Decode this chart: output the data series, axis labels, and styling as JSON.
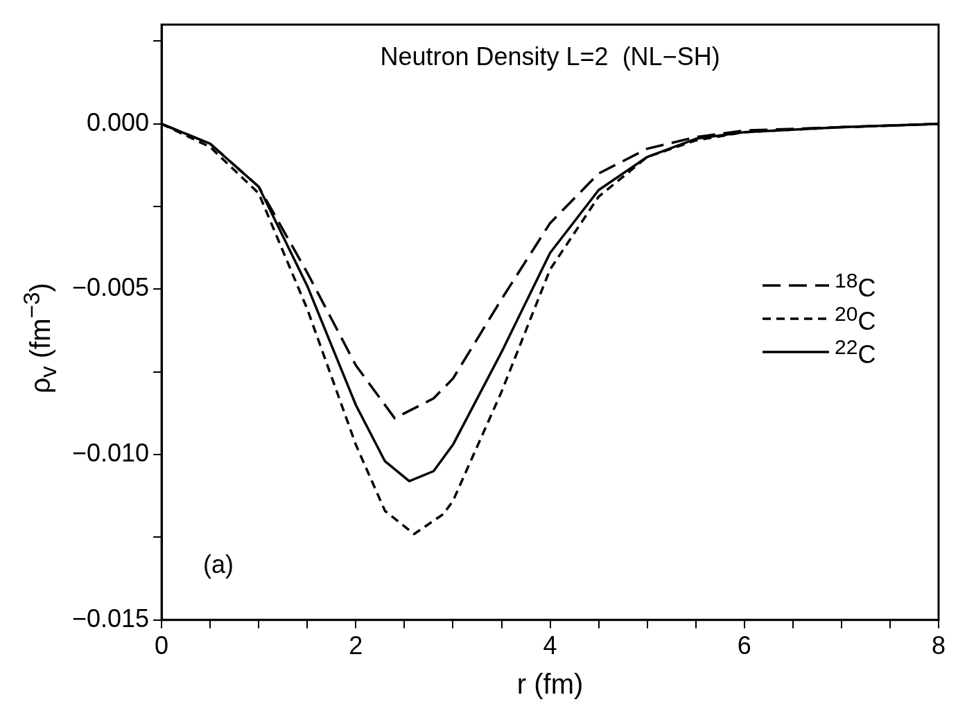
{
  "chart_data": {
    "type": "line",
    "title": "Neutron Density L=2  (NL−SH)",
    "xlabel": "r (fm)",
    "ylabel": "ρ$_{v}$ (fm$^{−3}$)",
    "annotations": [
      "(a)"
    ],
    "xlim": [
      0,
      8
    ],
    "xticks": [
      0,
      {
        "value": 0.5,
        "label": null
      },
      {
        "value": 1,
        "label": null
      },
      {
        "value": 1.5,
        "label": null
      },
      2,
      {
        "value": 2.5,
        "label": null
      },
      {
        "value": 3,
        "label": null
      },
      {
        "value": 3.5,
        "label": null
      },
      4,
      {
        "value": 4.5,
        "label": null
      },
      {
        "value": 5,
        "label": null
      },
      {
        "value": 5.5,
        "label": null
      },
      6,
      {
        "value": 6.5,
        "label": null
      },
      {
        "value": 7,
        "label": null
      },
      {
        "value": 7.5,
        "label": null
      },
      8
    ],
    "ylim": [
      -0.015,
      0.003
    ],
    "yticks": [
      {
        "value": -0.015,
        "label": "−0.015"
      },
      {
        "value": -0.0125,
        "label": null
      },
      {
        "value": -0.01,
        "label": "−0.010"
      },
      {
        "value": -0.0075,
        "label": null
      },
      {
        "value": -0.005,
        "label": "−0.005"
      },
      {
        "value": -0.0025,
        "label": null
      },
      {
        "value": 0,
        "label": "0.000"
      },
      {
        "value": 0.0025,
        "label": null
      }
    ],
    "grid": false,
    "legend": "right",
    "marker": "none",
    "series": [
      {
        "name": "$^{18}$C",
        "color": "#000000",
        "line_style": "dashed",
        "x": [
          0,
          0.5,
          1,
          1.5,
          2,
          2.4,
          2.8,
          3,
          3.5,
          4,
          4.5,
          5,
          5.5,
          6,
          7,
          8
        ],
        "values": [
          0,
          -0.0006,
          -0.0019,
          -0.0045,
          -0.0073,
          -0.0089,
          -0.0083,
          -0.0077,
          -0.0053,
          -0.003,
          -0.0015,
          -0.00075,
          -0.0004,
          -0.0002,
          -0.0001,
          0
        ]
      },
      {
        "name": "$^{20}$C",
        "color": "#000000",
        "line_style": "dotted",
        "x": [
          0,
          0.5,
          1,
          1.5,
          2,
          2.3,
          2.6,
          2.9,
          3,
          3.5,
          4,
          4.5,
          5,
          5.5,
          6,
          7,
          8
        ],
        "values": [
          0,
          -0.0007,
          -0.0021,
          -0.0056,
          -0.0097,
          -0.0117,
          -0.0124,
          -0.0118,
          -0.0114,
          -0.0081,
          -0.0044,
          -0.0022,
          -0.001,
          -0.0005,
          -0.00025,
          -0.0001,
          0
        ]
      },
      {
        "name": "$^{22}$C",
        "color": "#000000",
        "line_style": "solid",
        "x": [
          0,
          0.5,
          1,
          1.5,
          2,
          2.3,
          2.55,
          2.8,
          3,
          3.5,
          4,
          4.5,
          5,
          5.5,
          6,
          7,
          8
        ],
        "values": [
          0,
          -0.0006,
          -0.0019,
          -0.0049,
          -0.0085,
          -0.0102,
          -0.0108,
          -0.0105,
          -0.0097,
          -0.0069,
          -0.0039,
          -0.002,
          -0.001,
          -0.00045,
          -0.00025,
          -0.0001,
          0
        ]
      }
    ]
  }
}
